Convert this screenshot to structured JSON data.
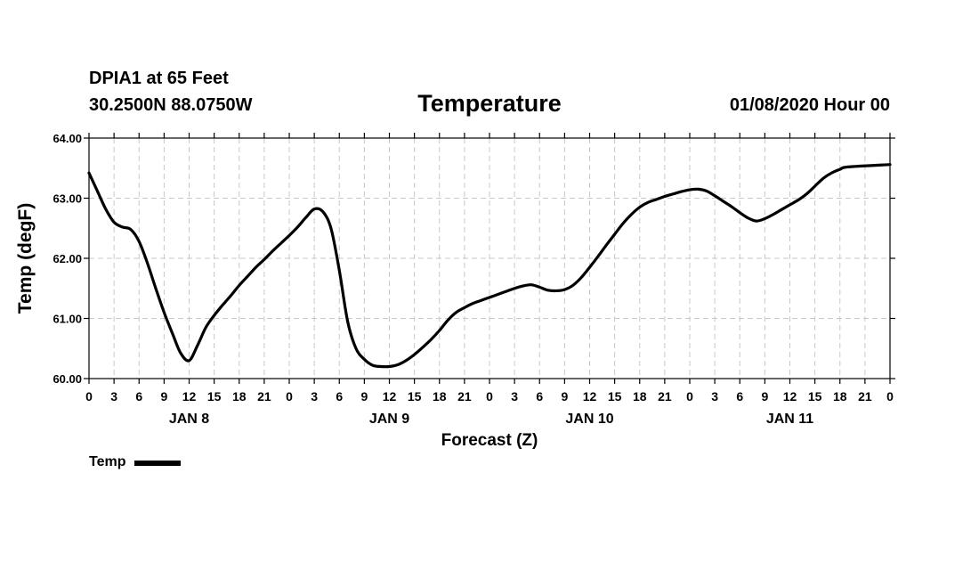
{
  "header": {
    "station": "DPIA1 at 65 Feet",
    "coords": "30.2500N 88.0750W",
    "title": "Temperature",
    "datetime": "01/08/2020 Hour 00"
  },
  "legend": {
    "label": "Temp",
    "color": "#000000"
  },
  "chart_data": {
    "type": "line",
    "title": "Temperature",
    "xlabel": "Forecast (Z)",
    "ylabel": "Temp (degF)",
    "xlim": [
      0,
      96
    ],
    "ylim": [
      60.0,
      64.0
    ],
    "y_ticks": [
      "60.00",
      "61.00",
      "62.00",
      "63.00",
      "64.00"
    ],
    "x_ticks": [
      {
        "hour": 0,
        "label": "0"
      },
      {
        "hour": 3,
        "label": "3"
      },
      {
        "hour": 6,
        "label": "6"
      },
      {
        "hour": 9,
        "label": "9"
      },
      {
        "hour": 12,
        "label": "12"
      },
      {
        "hour": 15,
        "label": "15"
      },
      {
        "hour": 18,
        "label": "18"
      },
      {
        "hour": 21,
        "label": "21"
      },
      {
        "hour": 24,
        "label": "0"
      },
      {
        "hour": 27,
        "label": "3"
      },
      {
        "hour": 30,
        "label": "6"
      },
      {
        "hour": 33,
        "label": "9"
      },
      {
        "hour": 36,
        "label": "12"
      },
      {
        "hour": 39,
        "label": "15"
      },
      {
        "hour": 42,
        "label": "18"
      },
      {
        "hour": 45,
        "label": "21"
      },
      {
        "hour": 48,
        "label": "0"
      },
      {
        "hour": 51,
        "label": "3"
      },
      {
        "hour": 54,
        "label": "6"
      },
      {
        "hour": 57,
        "label": "9"
      },
      {
        "hour": 60,
        "label": "12"
      },
      {
        "hour": 63,
        "label": "15"
      },
      {
        "hour": 66,
        "label": "18"
      },
      {
        "hour": 69,
        "label": "21"
      },
      {
        "hour": 72,
        "label": "0"
      },
      {
        "hour": 75,
        "label": "3"
      },
      {
        "hour": 78,
        "label": "6"
      },
      {
        "hour": 81,
        "label": "9"
      },
      {
        "hour": 84,
        "label": "12"
      },
      {
        "hour": 87,
        "label": "15"
      },
      {
        "hour": 90,
        "label": "18"
      },
      {
        "hour": 93,
        "label": "21"
      },
      {
        "hour": 96,
        "label": "0"
      }
    ],
    "day_labels": [
      {
        "hour": 12,
        "label": "JAN 8"
      },
      {
        "hour": 36,
        "label": "JAN 9"
      },
      {
        "hour": 60,
        "label": "JAN 10"
      },
      {
        "hour": 84,
        "label": "JAN 11"
      }
    ],
    "grid": true,
    "series": [
      {
        "name": "Temp",
        "color": "#000000",
        "points": [
          [
            0,
            63.42
          ],
          [
            1,
            63.12
          ],
          [
            2,
            62.82
          ],
          [
            3,
            62.6
          ],
          [
            4,
            62.52
          ],
          [
            5,
            62.48
          ],
          [
            6,
            62.28
          ],
          [
            7,
            61.92
          ],
          [
            8,
            61.5
          ],
          [
            9,
            61.1
          ],
          [
            10,
            60.75
          ],
          [
            11,
            60.42
          ],
          [
            12,
            60.3
          ],
          [
            13,
            60.55
          ],
          [
            14,
            60.85
          ],
          [
            15,
            61.05
          ],
          [
            16,
            61.22
          ],
          [
            17,
            61.38
          ],
          [
            18,
            61.55
          ],
          [
            19,
            61.7
          ],
          [
            20,
            61.85
          ],
          [
            21,
            61.98
          ],
          [
            22,
            62.12
          ],
          [
            23,
            62.25
          ],
          [
            24,
            62.38
          ],
          [
            25,
            62.52
          ],
          [
            26,
            62.68
          ],
          [
            27,
            62.82
          ],
          [
            28,
            62.78
          ],
          [
            29,
            62.5
          ],
          [
            30,
            61.8
          ],
          [
            31,
            60.95
          ],
          [
            32,
            60.5
          ],
          [
            33,
            60.32
          ],
          [
            34,
            60.22
          ],
          [
            35,
            60.2
          ],
          [
            36,
            60.2
          ],
          [
            37,
            60.23
          ],
          [
            38,
            60.3
          ],
          [
            39,
            60.4
          ],
          [
            40,
            60.52
          ],
          [
            41,
            60.65
          ],
          [
            42,
            60.8
          ],
          [
            43,
            60.97
          ],
          [
            44,
            61.1
          ],
          [
            45,
            61.18
          ],
          [
            46,
            61.25
          ],
          [
            47,
            61.3
          ],
          [
            48,
            61.35
          ],
          [
            49,
            61.4
          ],
          [
            50,
            61.45
          ],
          [
            51,
            61.5
          ],
          [
            52,
            61.54
          ],
          [
            53,
            61.56
          ],
          [
            54,
            61.52
          ],
          [
            55,
            61.47
          ],
          [
            56,
            61.46
          ],
          [
            57,
            61.48
          ],
          [
            58,
            61.55
          ],
          [
            59,
            61.68
          ],
          [
            60,
            61.85
          ],
          [
            61,
            62.03
          ],
          [
            62,
            62.22
          ],
          [
            63,
            62.4
          ],
          [
            64,
            62.58
          ],
          [
            65,
            62.73
          ],
          [
            66,
            62.85
          ],
          [
            67,
            62.93
          ],
          [
            68,
            62.98
          ],
          [
            69,
            63.03
          ],
          [
            70,
            63.07
          ],
          [
            71,
            63.11
          ],
          [
            72,
            63.14
          ],
          [
            73,
            63.15
          ],
          [
            74,
            63.12
          ],
          [
            75,
            63.04
          ],
          [
            76,
            62.95
          ],
          [
            77,
            62.86
          ],
          [
            78,
            62.76
          ],
          [
            79,
            62.67
          ],
          [
            80,
            62.62
          ],
          [
            81,
            62.66
          ],
          [
            82,
            62.73
          ],
          [
            83,
            62.81
          ],
          [
            84,
            62.89
          ],
          [
            85,
            62.97
          ],
          [
            86,
            63.07
          ],
          [
            87,
            63.2
          ],
          [
            88,
            63.33
          ],
          [
            89,
            63.42
          ],
          [
            90,
            63.48
          ],
          [
            91,
            63.52
          ],
          [
            96,
            63.56
          ]
        ]
      }
    ]
  }
}
